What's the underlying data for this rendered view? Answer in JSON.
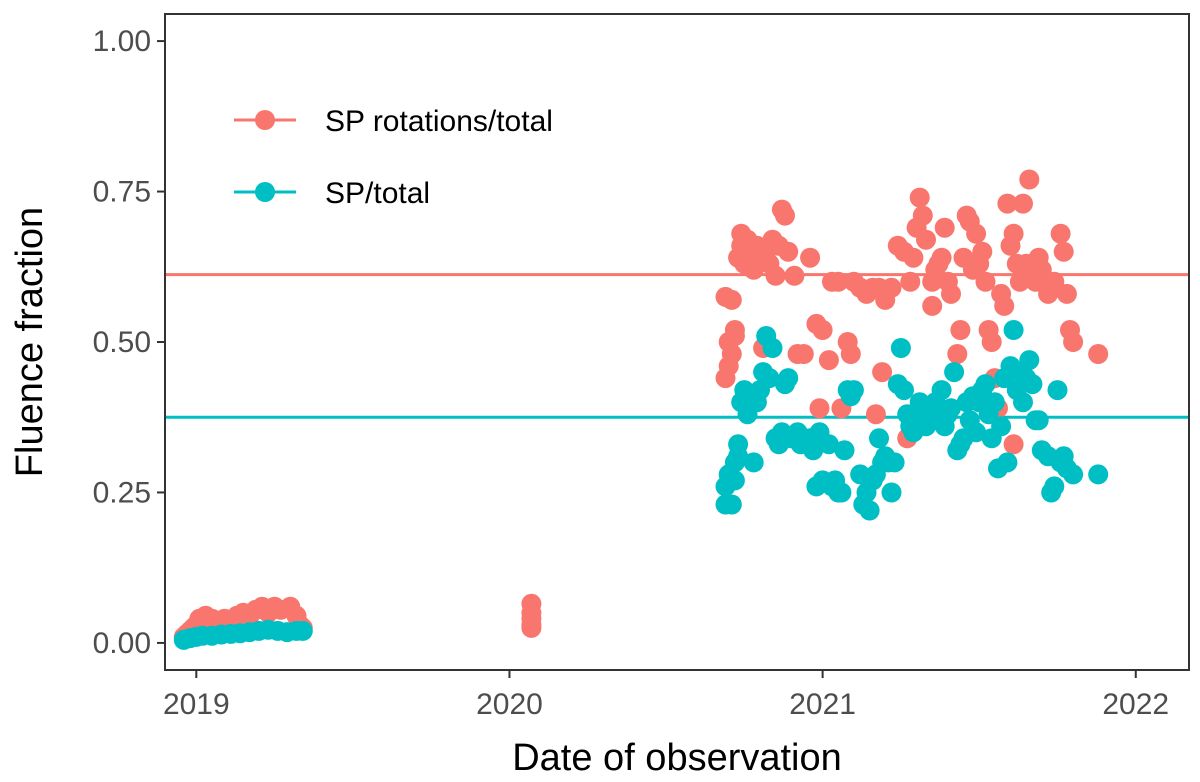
{
  "chart_data": {
    "type": "scatter",
    "title": "",
    "xlabel": "Date of observation",
    "ylabel": "Fluence fraction",
    "xlim": [
      2018.9,
      2022.17
    ],
    "ylim": [
      -0.045,
      1.045
    ],
    "xticks": [
      2019,
      2020,
      2021,
      2022
    ],
    "xtick_labels": [
      "2019",
      "2020",
      "2021",
      "2022"
    ],
    "yticks": [
      0,
      0.25,
      0.5,
      0.75,
      1.0
    ],
    "ytick_labels": [
      "0.00",
      "0.25",
      "0.50",
      "0.75",
      "1.00"
    ],
    "grid": false,
    "legend_position": "top-left",
    "series": [
      {
        "name": "SP rotations/total",
        "color": "#F8766D",
        "hline": 0.612,
        "points": [
          [
            2018.96,
            0.01
          ],
          [
            2018.97,
            0.015
          ],
          [
            2018.98,
            0.02
          ],
          [
            2018.99,
            0.025
          ],
          [
            2019.0,
            0.03
          ],
          [
            2019.01,
            0.04
          ],
          [
            2019.02,
            0.035
          ],
          [
            2019.03,
            0.045
          ],
          [
            2019.05,
            0.04
          ],
          [
            2019.07,
            0.035
          ],
          [
            2019.09,
            0.04
          ],
          [
            2019.11,
            0.035
          ],
          [
            2019.13,
            0.045
          ],
          [
            2019.15,
            0.05
          ],
          [
            2019.17,
            0.045
          ],
          [
            2019.19,
            0.055
          ],
          [
            2019.21,
            0.06
          ],
          [
            2019.23,
            0.05
          ],
          [
            2019.25,
            0.06
          ],
          [
            2019.27,
            0.055
          ],
          [
            2019.3,
            0.06
          ],
          [
            2019.32,
            0.045
          ],
          [
            2019.33,
            0.03
          ],
          [
            2019.34,
            0.025
          ],
          [
            2020.07,
            0.065
          ],
          [
            2020.07,
            0.05
          ],
          [
            2020.07,
            0.04
          ],
          [
            2020.07,
            0.03
          ],
          [
            2020.07,
            0.025
          ],
          [
            2020.69,
            0.44
          ],
          [
            2020.69,
            0.575
          ],
          [
            2020.7,
            0.5
          ],
          [
            2020.7,
            0.46
          ],
          [
            2020.71,
            0.48
          ],
          [
            2020.71,
            0.57
          ],
          [
            2020.72,
            0.52
          ],
          [
            2020.72,
            0.51
          ],
          [
            2020.73,
            0.64
          ],
          [
            2020.74,
            0.66
          ],
          [
            2020.74,
            0.68
          ],
          [
            2020.75,
            0.63
          ],
          [
            2020.76,
            0.67
          ],
          [
            2020.77,
            0.65
          ],
          [
            2020.78,
            0.62
          ],
          [
            2020.79,
            0.66
          ],
          [
            2020.8,
            0.64
          ],
          [
            2020.81,
            0.49
          ],
          [
            2020.82,
            0.65
          ],
          [
            2020.83,
            0.63
          ],
          [
            2020.84,
            0.67
          ],
          [
            2020.85,
            0.61
          ],
          [
            2020.86,
            0.66
          ],
          [
            2020.87,
            0.72
          ],
          [
            2020.88,
            0.71
          ],
          [
            2020.89,
            0.65
          ],
          [
            2020.91,
            0.61
          ],
          [
            2020.92,
            0.48
          ],
          [
            2020.94,
            0.48
          ],
          [
            2020.96,
            0.64
          ],
          [
            2020.98,
            0.53
          ],
          [
            2020.99,
            0.39
          ],
          [
            2021.0,
            0.52
          ],
          [
            2021.02,
            0.47
          ],
          [
            2021.03,
            0.6
          ],
          [
            2021.05,
            0.6
          ],
          [
            2021.06,
            0.39
          ],
          [
            2021.08,
            0.5
          ],
          [
            2021.09,
            0.48
          ],
          [
            2021.1,
            0.6
          ],
          [
            2021.12,
            0.59
          ],
          [
            2021.14,
            0.58
          ],
          [
            2021.16,
            0.59
          ],
          [
            2021.17,
            0.38
          ],
          [
            2021.18,
            0.59
          ],
          [
            2021.19,
            0.45
          ],
          [
            2021.2,
            0.57
          ],
          [
            2021.22,
            0.59
          ],
          [
            2021.24,
            0.66
          ],
          [
            2021.26,
            0.65
          ],
          [
            2021.28,
            0.6
          ],
          [
            2021.29,
            0.64
          ],
          [
            2021.3,
            0.69
          ],
          [
            2021.31,
            0.74
          ],
          [
            2021.32,
            0.71
          ],
          [
            2021.33,
            0.67
          ],
          [
            2021.35,
            0.6
          ],
          [
            2021.36,
            0.62
          ],
          [
            2021.37,
            0.63
          ],
          [
            2021.38,
            0.64
          ],
          [
            2021.39,
            0.69
          ],
          [
            2021.4,
            0.6
          ],
          [
            2021.41,
            0.58
          ],
          [
            2021.43,
            0.48
          ],
          [
            2021.44,
            0.52
          ],
          [
            2021.45,
            0.64
          ],
          [
            2021.46,
            0.71
          ],
          [
            2021.47,
            0.7
          ],
          [
            2021.48,
            0.62
          ],
          [
            2021.49,
            0.68
          ],
          [
            2021.5,
            0.63
          ],
          [
            2021.51,
            0.65
          ],
          [
            2021.52,
            0.6
          ],
          [
            2021.53,
            0.52
          ],
          [
            2021.54,
            0.5
          ],
          [
            2021.55,
            0.44
          ],
          [
            2021.56,
            0.39
          ],
          [
            2021.57,
            0.58
          ],
          [
            2021.58,
            0.56
          ],
          [
            2021.59,
            0.73
          ],
          [
            2021.6,
            0.66
          ],
          [
            2021.61,
            0.68
          ],
          [
            2021.62,
            0.63
          ],
          [
            2021.63,
            0.6
          ],
          [
            2021.64,
            0.73
          ],
          [
            2021.65,
            0.63
          ],
          [
            2021.66,
            0.77
          ],
          [
            2021.67,
            0.61
          ],
          [
            2021.68,
            0.6
          ],
          [
            2021.69,
            0.64
          ],
          [
            2021.7,
            0.62
          ],
          [
            2021.72,
            0.58
          ],
          [
            2021.74,
            0.6
          ],
          [
            2021.76,
            0.68
          ],
          [
            2021.77,
            0.65
          ],
          [
            2021.78,
            0.58
          ],
          [
            2021.79,
            0.52
          ],
          [
            2021.8,
            0.5
          ],
          [
            2021.88,
            0.48
          ],
          [
            2021.27,
            0.34
          ],
          [
            2021.61,
            0.33
          ],
          [
            2021.35,
            0.56
          ]
        ]
      },
      {
        "name": "SP/total",
        "color": "#00BFC4",
        "hline": 0.375,
        "points": [
          [
            2018.96,
            0.005
          ],
          [
            2018.98,
            0.008
          ],
          [
            2019.0,
            0.01
          ],
          [
            2019.02,
            0.012
          ],
          [
            2019.05,
            0.012
          ],
          [
            2019.08,
            0.014
          ],
          [
            2019.11,
            0.015
          ],
          [
            2019.14,
            0.016
          ],
          [
            2019.17,
            0.018
          ],
          [
            2019.2,
            0.02
          ],
          [
            2019.23,
            0.022
          ],
          [
            2019.26,
            0.02
          ],
          [
            2019.29,
            0.018
          ],
          [
            2019.32,
            0.02
          ],
          [
            2019.34,
            0.02
          ],
          [
            2020.69,
            0.23
          ],
          [
            2020.69,
            0.26
          ],
          [
            2020.7,
            0.28
          ],
          [
            2020.71,
            0.23
          ],
          [
            2020.72,
            0.3
          ],
          [
            2020.72,
            0.27
          ],
          [
            2020.73,
            0.31
          ],
          [
            2020.73,
            0.33
          ],
          [
            2020.74,
            0.4
          ],
          [
            2020.75,
            0.42
          ],
          [
            2020.76,
            0.38
          ],
          [
            2020.77,
            0.41
          ],
          [
            2020.78,
            0.3
          ],
          [
            2020.79,
            0.4
          ],
          [
            2020.8,
            0.42
          ],
          [
            2020.81,
            0.45
          ],
          [
            2020.82,
            0.51
          ],
          [
            2020.83,
            0.44
          ],
          [
            2020.84,
            0.49
          ],
          [
            2020.85,
            0.34
          ],
          [
            2020.86,
            0.33
          ],
          [
            2020.87,
            0.35
          ],
          [
            2020.88,
            0.43
          ],
          [
            2020.89,
            0.44
          ],
          [
            2020.9,
            0.34
          ],
          [
            2020.92,
            0.35
          ],
          [
            2020.93,
            0.33
          ],
          [
            2020.94,
            0.34
          ],
          [
            2020.96,
            0.34
          ],
          [
            2020.97,
            0.32
          ],
          [
            2020.98,
            0.26
          ],
          [
            2020.99,
            0.35
          ],
          [
            2021.0,
            0.27
          ],
          [
            2021.02,
            0.33
          ],
          [
            2021.03,
            0.26
          ],
          [
            2021.04,
            0.27
          ],
          [
            2021.05,
            0.25
          ],
          [
            2021.06,
            0.25
          ],
          [
            2021.07,
            0.32
          ],
          [
            2021.08,
            0.42
          ],
          [
            2021.09,
            0.41
          ],
          [
            2021.1,
            0.42
          ],
          [
            2021.12,
            0.28
          ],
          [
            2021.13,
            0.23
          ],
          [
            2021.14,
            0.25
          ],
          [
            2021.15,
            0.22
          ],
          [
            2021.16,
            0.27
          ],
          [
            2021.17,
            0.28
          ],
          [
            2021.18,
            0.34
          ],
          [
            2021.19,
            0.3
          ],
          [
            2021.2,
            0.31
          ],
          [
            2021.21,
            0.3
          ],
          [
            2021.22,
            0.25
          ],
          [
            2021.23,
            0.3
          ],
          [
            2021.24,
            0.43
          ],
          [
            2021.25,
            0.49
          ],
          [
            2021.26,
            0.42
          ],
          [
            2021.27,
            0.38
          ],
          [
            2021.28,
            0.36
          ],
          [
            2021.29,
            0.35
          ],
          [
            2021.3,
            0.38
          ],
          [
            2021.31,
            0.4
          ],
          [
            2021.32,
            0.38
          ],
          [
            2021.33,
            0.36
          ],
          [
            2021.34,
            0.37
          ],
          [
            2021.35,
            0.39
          ],
          [
            2021.36,
            0.4
          ],
          [
            2021.37,
            0.38
          ],
          [
            2021.38,
            0.42
          ],
          [
            2021.39,
            0.36
          ],
          [
            2021.4,
            0.38
          ],
          [
            2021.41,
            0.39
          ],
          [
            2021.42,
            0.45
          ],
          [
            2021.43,
            0.32
          ],
          [
            2021.44,
            0.33
          ],
          [
            2021.45,
            0.34
          ],
          [
            2021.46,
            0.4
          ],
          [
            2021.47,
            0.37
          ],
          [
            2021.48,
            0.41
          ],
          [
            2021.49,
            0.35
          ],
          [
            2021.5,
            0.4
          ],
          [
            2021.51,
            0.42
          ],
          [
            2021.52,
            0.43
          ],
          [
            2021.53,
            0.38
          ],
          [
            2021.54,
            0.34
          ],
          [
            2021.55,
            0.4
          ],
          [
            2021.56,
            0.29
          ],
          [
            2021.57,
            0.36
          ],
          [
            2021.58,
            0.44
          ],
          [
            2021.59,
            0.3
          ],
          [
            2021.6,
            0.46
          ],
          [
            2021.61,
            0.52
          ],
          [
            2021.62,
            0.42
          ],
          [
            2021.63,
            0.45
          ],
          [
            2021.64,
            0.4
          ],
          [
            2021.65,
            0.44
          ],
          [
            2021.66,
            0.47
          ],
          [
            2021.67,
            0.43
          ],
          [
            2021.68,
            0.37
          ],
          [
            2021.69,
            0.37
          ],
          [
            2021.7,
            0.32
          ],
          [
            2021.72,
            0.31
          ],
          [
            2021.73,
            0.25
          ],
          [
            2021.74,
            0.26
          ],
          [
            2021.75,
            0.42
          ],
          [
            2021.76,
            0.3
          ],
          [
            2021.77,
            0.31
          ],
          [
            2021.78,
            0.29
          ],
          [
            2021.8,
            0.28
          ],
          [
            2021.88,
            0.28
          ]
        ]
      }
    ]
  }
}
